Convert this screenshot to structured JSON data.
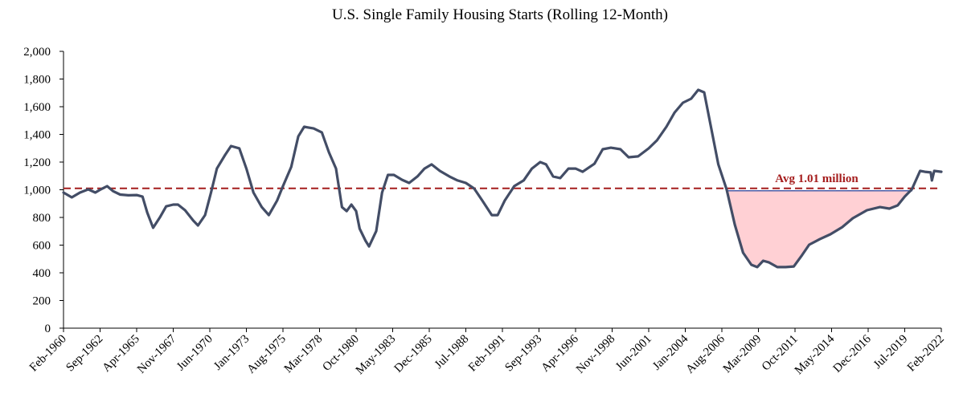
{
  "chart_data": {
    "type": "line",
    "title": "U.S. Single Family Housing Starts (Rolling 12-Month)",
    "color": "#434d66",
    "x": [
      "Feb-1960",
      "Sep-1960",
      "Apr-1961",
      "Nov-1961",
      "May-1962",
      "Sep-1962",
      "Mar-1963",
      "Aug-1963",
      "Feb-1964",
      "Sep-1964",
      "Apr-1965",
      "Sep-1965",
      "Jan-1966",
      "Jun-1966",
      "Dec-1966",
      "May-1967",
      "Nov-1967",
      "Mar-1968",
      "Sep-1968",
      "Apr-1969",
      "Aug-1969",
      "Feb-1970",
      "Jul-1970",
      "Dec-1970",
      "Jul-1971",
      "Dec-1971",
      "Jul-1972",
      "Jan-1973",
      "Jul-1973",
      "Feb-1974",
      "Aug-1974",
      "Mar-1975",
      "Aug-1975",
      "Mar-1976",
      "Sep-1976",
      "Feb-1977",
      "Oct-1977",
      "May-1978",
      "Nov-1978",
      "May-1979",
      "Oct-1979",
      "Feb-1980",
      "Jun-1980",
      "Oct-1980",
      "Jan-1981",
      "Jun-1981",
      "Sep-1981",
      "Mar-1982",
      "Aug-1982",
      "Jan-1983",
      "Jun-1983",
      "Jan-1984",
      "Jul-1984",
      "Feb-1985",
      "Aug-1985",
      "Feb-1986",
      "Sep-1986",
      "May-1987",
      "Dec-1987",
      "Jul-1988",
      "Feb-1989",
      "Sep-1989",
      "May-1990",
      "Oct-1990",
      "Apr-1991",
      "Dec-1991",
      "Aug-1992",
      "Mar-1993",
      "Oct-1993",
      "Mar-1994",
      "Sep-1994",
      "Mar-1995",
      "Oct-1995",
      "Apr-1996",
      "Oct-1996",
      "Aug-1997",
      "Mar-1998",
      "Oct-1998",
      "Jun-1999",
      "Jan-2000",
      "Sep-2000",
      "Jun-2001",
      "Jan-2002",
      "Sep-2002",
      "Apr-2003",
      "Nov-2003",
      "Jun-2004",
      "Dec-2004",
      "May-2005",
      "Nov-2005",
      "May-2006",
      "Dec-2006",
      "Jul-2007",
      "Feb-2008",
      "Sep-2008",
      "Feb-2009",
      "Jul-2009",
      "Dec-2009",
      "Jul-2010",
      "Feb-2011",
      "Sep-2011",
      "Apr-2012",
      "Oct-2012",
      "Jul-2013",
      "Apr-2014",
      "Feb-2015",
      "Nov-2015",
      "Nov-2016",
      "Oct-2017",
      "Jun-2018",
      "Jan-2019",
      "Jul-2019",
      "Jan-2020",
      "Aug-2020",
      "Dec-2020",
      "May-2021",
      "Jun-2021",
      "Aug-2021",
      "Feb-2022"
    ],
    "values": [
      980,
      945,
      980,
      1003,
      980,
      1000,
      1026,
      990,
      965,
      960,
      962,
      950,
      835,
      725,
      805,
      880,
      893,
      893,
      852,
      777,
      742,
      817,
      980,
      1153,
      1252,
      1316,
      1299,
      1153,
      980,
      875,
      817,
      922,
      1026,
      1165,
      1386,
      1455,
      1443,
      1414,
      1270,
      1153,
      875,
      846,
      893,
      846,
      719,
      632,
      591,
      701,
      980,
      1107,
      1107,
      1072,
      1049,
      1096,
      1153,
      1183,
      1136,
      1096,
      1067,
      1049,
      1009,
      922,
      817,
      817,
      922,
      1026,
      1067,
      1153,
      1200,
      1183,
      1096,
      1084,
      1153,
      1153,
      1130,
      1188,
      1293,
      1304,
      1293,
      1235,
      1241,
      1299,
      1357,
      1455,
      1559,
      1629,
      1658,
      1722,
      1704,
      1443,
      1183,
      1003,
      748,
      545,
      458,
      441,
      487,
      475,
      441,
      441,
      446,
      528,
      603,
      643,
      678,
      730,
      794,
      852,
      875,
      864,
      887,
      951,
      1003,
      1136,
      1130,
      1125,
      1067,
      1136,
      1130
    ],
    "xlim": [
      "Feb-1960",
      "Feb-2022"
    ],
    "xticks": [
      "Feb-1960",
      "Sep-1962",
      "Apr-1965",
      "Nov-1967",
      "Jun-1970",
      "Jan-1973",
      "Aug-1975",
      "Mar-1978",
      "Oct-1980",
      "May-1983",
      "Dec-1985",
      "Jul-1988",
      "Feb-1991",
      "Sep-1993",
      "Apr-1996",
      "Nov-1998",
      "Jun-2001",
      "Jan-2004",
      "Aug-2006",
      "Mar-2009",
      "Oct-2011",
      "May-2014",
      "Dec-2016",
      "Jul-2019",
      "Feb-2022"
    ],
    "ylim": [
      0,
      2000
    ],
    "yticks": [
      0,
      200,
      400,
      600,
      800,
      {
        "value": 1000,
        "label": "1,000"
      },
      {
        "value": 1200,
        "label": "1,200"
      },
      {
        "value": 1400,
        "label": "1,400"
      },
      {
        "value": 1600,
        "label": "1,600"
      },
      {
        "value": 1800,
        "label": "1,800"
      },
      {
        "value": 2000,
        "label": "2,000"
      }
    ],
    "avg": {
      "value": 1010,
      "label": "Avg 1.01 million",
      "color": "#a51d1d"
    },
    "shade": {
      "from": "Dec-2006",
      "to": "Jan-2020",
      "fill": "#ffd0d4",
      "stroke": "#4a5ea8"
    }
  }
}
